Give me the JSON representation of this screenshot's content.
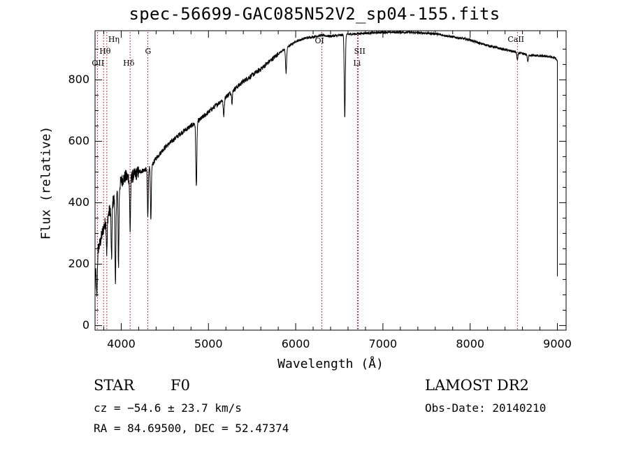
{
  "chart_data": {
    "type": "line",
    "title": "spec-56699-GAC085N52V2_sp04-155.fits",
    "xlabel": "Wavelength (Å)",
    "ylabel": "Flux (relative)",
    "xlim": [
      3700,
      9100
    ],
    "ylim": [
      -15,
      960
    ],
    "xticks": [
      4000,
      5000,
      6000,
      7000,
      8000,
      9000
    ],
    "yticks": [
      0,
      200,
      400,
      600,
      800
    ],
    "grid": false,
    "line_color": "#000000",
    "marker_color": "#a00000",
    "spectral_lines": [
      {
        "label": "OII",
        "wavelength": 3727
      },
      {
        "label": "Hη",
        "wavelength": 3835
      },
      {
        "label": "Hθ",
        "wavelength": 3798
      },
      {
        "label": "Hδ",
        "wavelength": 4102
      },
      {
        "label": "G",
        "wavelength": 4305
      },
      {
        "label": "OI",
        "wavelength": 6300
      },
      {
        "label": "SII",
        "wavelength": 6717
      },
      {
        "label": "Li",
        "wavelength": 6708
      },
      {
        "label": "CaII",
        "wavelength": 8542
      }
    ],
    "continuum": [
      [
        3700,
        230
      ],
      [
        3750,
        260
      ],
      [
        3800,
        320
      ],
      [
        3850,
        360
      ],
      [
        3900,
        400
      ],
      [
        3950,
        430
      ],
      [
        4000,
        470
      ],
      [
        4050,
        485
      ],
      [
        4100,
        480
      ],
      [
        4150,
        490
      ],
      [
        4200,
        500
      ],
      [
        4250,
        505
      ],
      [
        4300,
        510
      ],
      [
        4350,
        520
      ],
      [
        4400,
        545
      ],
      [
        4500,
        580
      ],
      [
        4600,
        605
      ],
      [
        4700,
        630
      ],
      [
        4800,
        650
      ],
      [
        4900,
        670
      ],
      [
        5000,
        695
      ],
      [
        5100,
        720
      ],
      [
        5200,
        745
      ],
      [
        5300,
        770
      ],
      [
        5400,
        795
      ],
      [
        5500,
        815
      ],
      [
        5600,
        835
      ],
      [
        5700,
        860
      ],
      [
        5800,
        885
      ],
      [
        5900,
        905
      ],
      [
        6000,
        925
      ],
      [
        6100,
        935
      ],
      [
        6200,
        940
      ],
      [
        6300,
        945
      ],
      [
        6400,
        942
      ],
      [
        6500,
        945
      ],
      [
        6600,
        948
      ],
      [
        6700,
        950
      ],
      [
        6800,
        952
      ],
      [
        6900,
        953
      ],
      [
        7000,
        955
      ],
      [
        7100,
        955
      ],
      [
        7200,
        955
      ],
      [
        7300,
        955
      ],
      [
        7400,
        953
      ],
      [
        7500,
        952
      ],
      [
        7600,
        950
      ],
      [
        7700,
        945
      ],
      [
        7800,
        940
      ],
      [
        7900,
        935
      ],
      [
        8000,
        930
      ],
      [
        8100,
        920
      ],
      [
        8200,
        912
      ],
      [
        8300,
        905
      ],
      [
        8400,
        898
      ],
      [
        8500,
        892
      ],
      [
        8600,
        885
      ],
      [
        8700,
        880
      ],
      [
        8800,
        878
      ],
      [
        8900,
        876
      ],
      [
        8980,
        870
      ],
      [
        9000,
        860
      ]
    ],
    "absorption": [
      {
        "wavelength": 3720,
        "depth": 150,
        "width": 6
      },
      {
        "wavelength": 3835,
        "depth": 110,
        "width": 5
      },
      {
        "wavelength": 3889,
        "depth": 180,
        "width": 5
      },
      {
        "wavelength": 3934,
        "depth": 300,
        "width": 5
      },
      {
        "wavelength": 3969,
        "depth": 250,
        "width": 5
      },
      {
        "wavelength": 4102,
        "depth": 170,
        "width": 5
      },
      {
        "wavelength": 4305,
        "depth": 160,
        "width": 5
      },
      {
        "wavelength": 4340,
        "depth": 180,
        "width": 5
      },
      {
        "wavelength": 4861,
        "depth": 210,
        "width": 6
      },
      {
        "wavelength": 5175,
        "depth": 55,
        "width": 6
      },
      {
        "wavelength": 5270,
        "depth": 35,
        "width": 5
      },
      {
        "wavelength": 5890,
        "depth": 80,
        "width": 6
      },
      {
        "wavelength": 6563,
        "depth": 270,
        "width": 6
      },
      {
        "wavelength": 8542,
        "depth": 25,
        "width": 6
      },
      {
        "wavelength": 8662,
        "depth": 22,
        "width": 6
      }
    ]
  },
  "info": {
    "class_label": "STAR",
    "subclass": "F0",
    "cz": "cz = −54.6 ± 23.7 km/s",
    "coords": "RA =  84.69500, DEC =  52.47374",
    "survey": "LAMOST DR2",
    "obs_date": "Obs-Date: 20140210"
  }
}
